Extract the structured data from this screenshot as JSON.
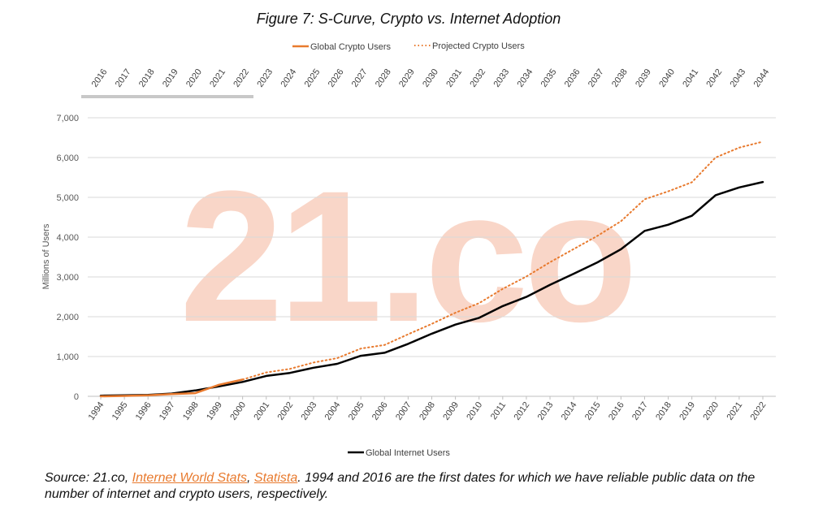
{
  "chart_data": {
    "type": "line",
    "title": "Figure 7: S-Curve, Crypto vs. Internet Adoption",
    "ylabel": "Millions of Users",
    "ylim": [
      0,
      7000
    ],
    "yticks": [
      0,
      1000,
      2000,
      3000,
      4000,
      5000,
      6000,
      7000
    ],
    "ytick_labels": [
      "0",
      "1,000",
      "2,000",
      "3,000",
      "4,000",
      "5,000",
      "6,000",
      "7,000"
    ],
    "grid": true,
    "bottom_axis_categories": [
      "1994",
      "1995",
      "1996",
      "1997",
      "1998",
      "1999",
      "2000",
      "2001",
      "2002",
      "2003",
      "2004",
      "2005",
      "2006",
      "2007",
      "2008",
      "2009",
      "2010",
      "2011",
      "2012",
      "2013",
      "2014",
      "2015",
      "2016",
      "2017",
      "2018",
      "2019",
      "2020",
      "2021",
      "2022"
    ],
    "top_axis_categories": [
      "2016",
      "2017",
      "2018",
      "2019",
      "2020",
      "2021",
      "2022",
      "2023",
      "2024",
      "2025",
      "2026",
      "2027",
      "2028",
      "2029",
      "2030",
      "2031",
      "2032",
      "2033",
      "2034",
      "2035",
      "2036",
      "2037",
      "2038",
      "2039",
      "2040",
      "2041",
      "2042",
      "2043",
      "2044"
    ],
    "series": [
      {
        "name": "Global Internet Users",
        "axis": "bottom",
        "style": "solid",
        "color": "#000000",
        "values": [
          16,
          26,
          36,
          70,
          147,
          248,
          361,
          513,
          587,
          719,
          817,
          1018,
          1093,
          1319,
          1574,
          1802,
          1971,
          2267,
          2497,
          2802,
          3079,
          3366,
          3696,
          4157,
          4313,
          4536,
          5053,
          5250,
          5385
        ]
      },
      {
        "name": "Global Crypto Users",
        "axis": "top",
        "style": "solid",
        "color": "#e87a2e",
        "values": [
          0,
          10,
          25,
          55,
          80,
          290,
          420
        ]
      },
      {
        "name": "Projected Crypto Users",
        "axis": "top",
        "style": "dotted",
        "color": "#e87a2e",
        "values": [
          420,
          600,
          690,
          850,
          960,
          1200,
          1290,
          1560,
          1820,
          2100,
          2340,
          2700,
          3010,
          3370,
          3700,
          4030,
          4400,
          4950,
          5150,
          5380,
          6000,
          6250,
          6400
        ]
      }
    ],
    "legend_top": [
      "Global Crypto Users",
      "Projected Crypto Users"
    ],
    "legend_bottom": [
      "Global Internet Users"
    ],
    "watermark": "21.co"
  },
  "footer": {
    "prefix": "Source: 21.co, ",
    "link1": "Internet World Stats",
    "sep": ", ",
    "link2": "Statista",
    "suffix": ". 1994 and 2016 are the first dates for which we have reliable public data on the number of internet and crypto users, respectively."
  }
}
